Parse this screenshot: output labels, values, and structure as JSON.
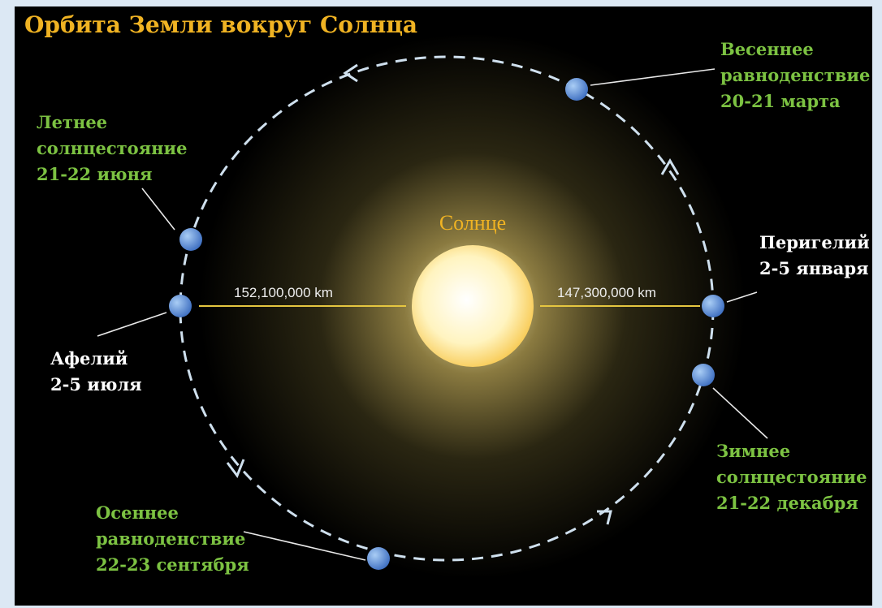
{
  "title": "Орбита Земли вокруг Солнца",
  "sun": {
    "label": "Солнце"
  },
  "distances": {
    "aphelion": "152,100,000 km",
    "perihelion": "147,300,000 km"
  },
  "points": [
    {
      "lines": [
        "Весеннее",
        "равноденствие",
        "20-21 марта"
      ]
    },
    {
      "lines": [
        "Летнее",
        "солнцестояние",
        "21-22 июня"
      ]
    },
    {
      "lines": [
        "Перигелий",
        "2-5 января"
      ]
    },
    {
      "lines": [
        "Афелий",
        "2-5 июля"
      ]
    },
    {
      "lines": [
        "Зимнее",
        "солнцестояние",
        "21-22 декабря"
      ]
    },
    {
      "lines": [
        "Осеннее",
        "равноденствие",
        "22-23 сентября"
      ]
    }
  ]
}
